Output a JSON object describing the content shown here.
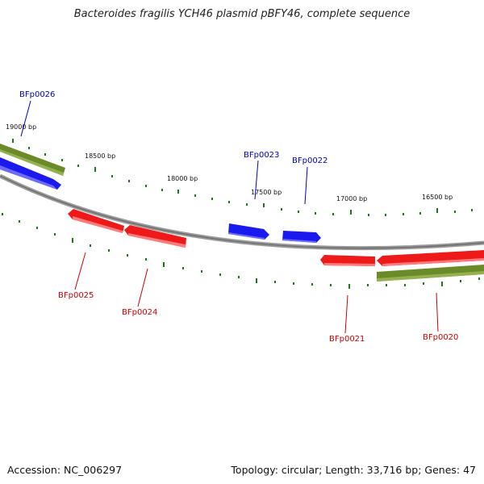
{
  "title": "Bacteroides fragilis YCH46 plasmid pBFY46, complete sequence",
  "footer": {
    "accession": "Accession: NC_006297",
    "summary": "Topology: circular; Length: 33,716 bp; Genes: 47"
  },
  "colors": {
    "forward_gene": "#1a1aee",
    "reverse_gene": "#ee1a1a",
    "forward_cds": "#6b8a28",
    "backbone": "#888888",
    "tick": "#1a7a1a",
    "forward_label": "#0000bb",
    "reverse_label": "#cc0000"
  },
  "scale_labels": [
    "19000 bp",
    "18500 bp",
    "18000 bp",
    "17500 bp",
    "17000 bp",
    "16500 bp"
  ],
  "genes": [
    {
      "name": "BFp0026",
      "strand": "forward"
    },
    {
      "name": "BFp0023",
      "strand": "forward"
    },
    {
      "name": "BFp0022",
      "strand": "forward"
    },
    {
      "name": "BFp0025",
      "strand": "reverse"
    },
    {
      "name": "BFp0024",
      "strand": "reverse"
    },
    {
      "name": "BFp0021",
      "strand": "reverse"
    },
    {
      "name": "BFp0020",
      "strand": "reverse"
    }
  ]
}
